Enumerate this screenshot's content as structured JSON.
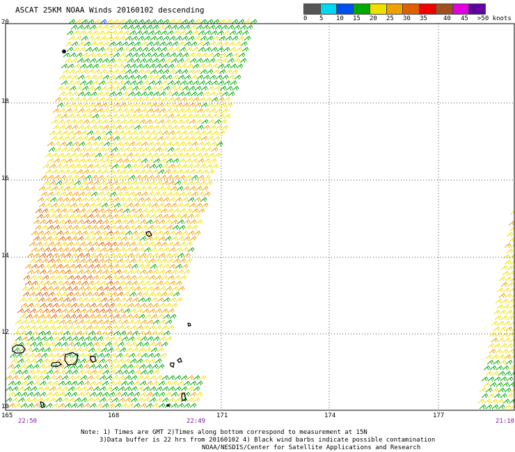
{
  "title": "ASCAT 25KM NOAA Winds 20160102 descending",
  "legend": {
    "colors": [
      "#555555",
      "#00d8f0",
      "#0050f0",
      "#00a800",
      "#f0e000",
      "#f0a000",
      "#e06000",
      "#f00000",
      "#a05020",
      "#e000e0",
      "#6000a0"
    ],
    "labels": [
      "0",
      "5",
      "10",
      "15",
      "20",
      "25",
      "30",
      "35",
      "40",
      "45",
      ">50 knots"
    ]
  },
  "latitude_labels": [
    "20",
    "18",
    "16",
    "14",
    "12",
    "10"
  ],
  "longitude_labels": [
    "165",
    "168",
    "171",
    "174",
    "177"
  ],
  "time_labels": [
    "22:50",
    "22:49",
    "21:10"
  ],
  "notes": {
    "line1": "Note: 1) Times are GMT 2)Times along bottom correspond to measurement at 15N",
    "line2": "3)Data buffer is 22 hrs from 20160102 4) Black wind barbs indicate possible contamination",
    "line3": "NOAA/NESDIS/Center for Satellite Applications and Research"
  },
  "swath_colors": {
    "green": "#00a800",
    "yellow": "#f0e000",
    "orange": "#f0a000",
    "dark_orange": "#e06000",
    "blue": "#0050f0"
  }
}
